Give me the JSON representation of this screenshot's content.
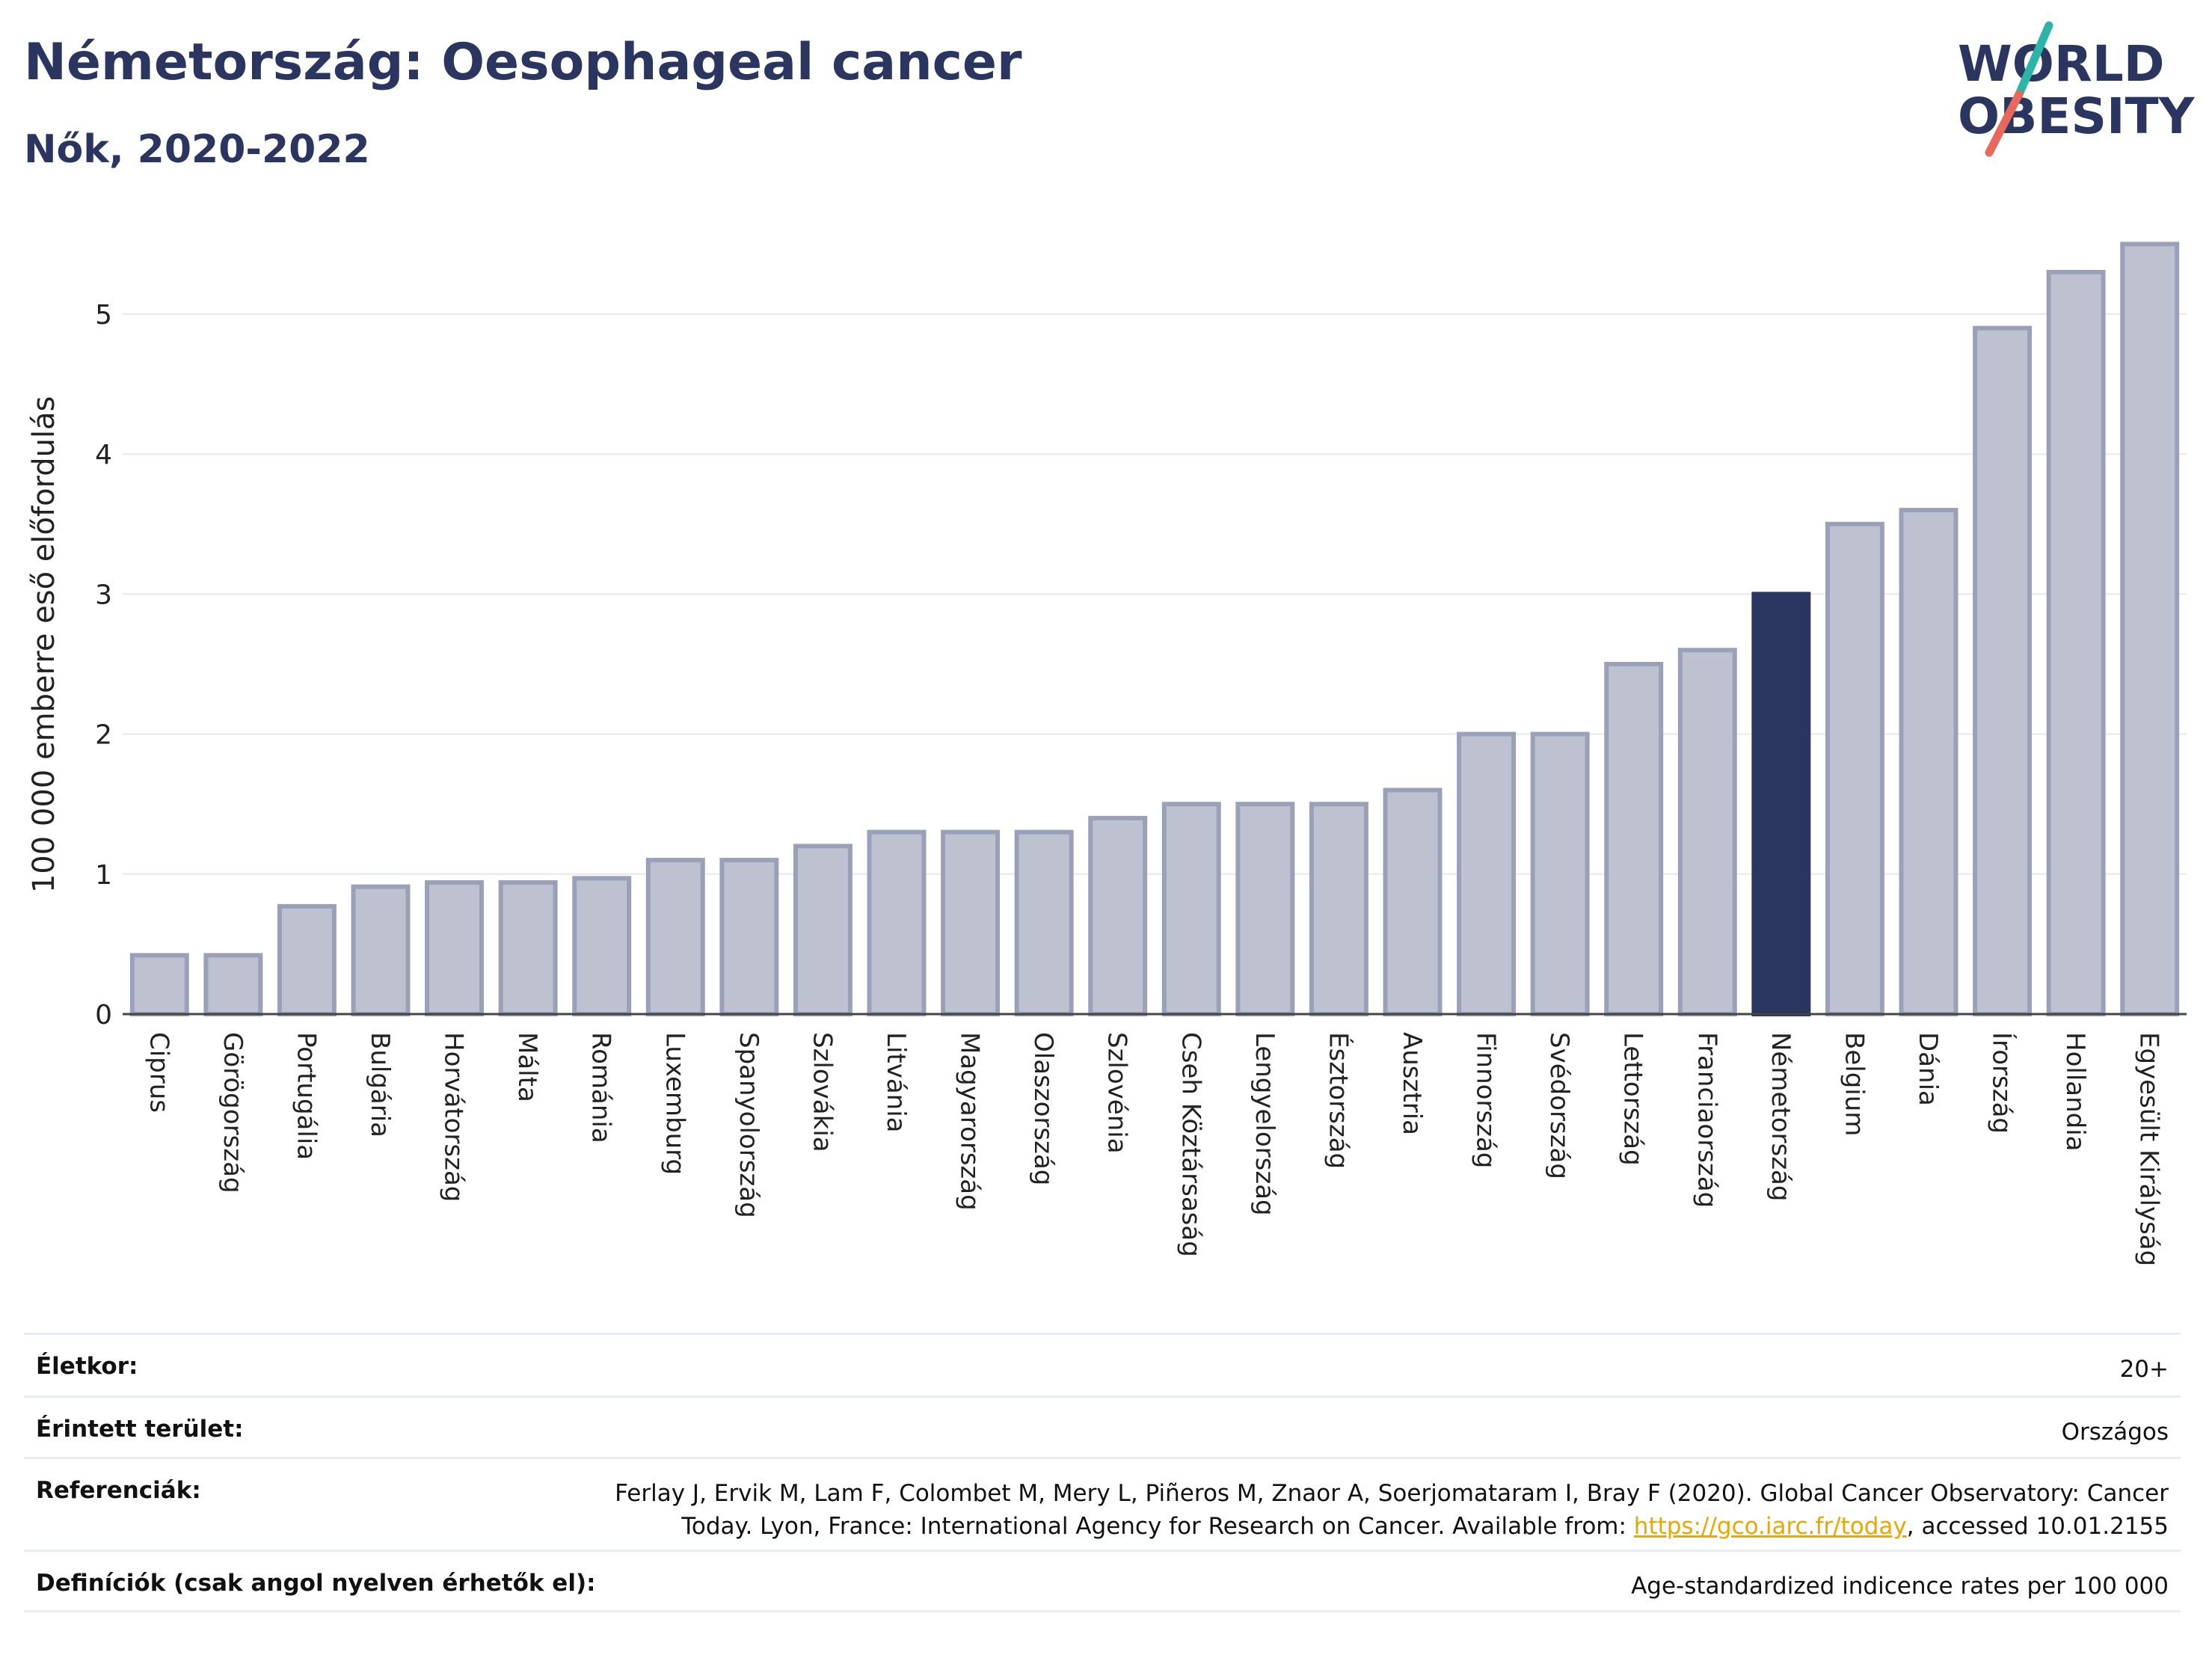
{
  "header": {
    "title": "Németország: Oesophageal cancer",
    "subtitle": "Nők, 2020-2022"
  },
  "logo": {
    "line1": "WORLD",
    "line2": "OBESITY",
    "accent_teal": "#2bb5a8",
    "accent_red": "#e8685c"
  },
  "colors": {
    "bar_default": "#bec2d0",
    "bar_border": "#9aa0b8",
    "bar_highlight": "#2a3560",
    "grid": "#e6e8ee"
  },
  "chart_data": {
    "type": "bar",
    "title": "",
    "xlabel": "",
    "ylabel": "100 000 emberre eső előfordulás",
    "ylim": [
      0,
      5.6
    ],
    "yticks": [
      0,
      1,
      2,
      3,
      4,
      5
    ],
    "grid": true,
    "highlight": "Németország",
    "categories": [
      "Ciprus",
      "Görögország",
      "Portugália",
      "Bulgária",
      "Horvátország",
      "Málta",
      "Románia",
      "Luxemburg",
      "Spanyolország",
      "Szlovákia",
      "Litvánia",
      "Magyarország",
      "Olaszország",
      "Szlovénia",
      "Cseh Köztársaság",
      "Lengyelország",
      "Észtország",
      "Ausztria",
      "Finnország",
      "Svédország",
      "Lettország",
      "Franciaország",
      "Németország",
      "Belgium",
      "Dánia",
      "Írország",
      "Hollandia",
      "Egyesült Királyság"
    ],
    "values": [
      0.42,
      0.42,
      0.77,
      0.91,
      0.94,
      0.94,
      0.97,
      1.1,
      1.1,
      1.2,
      1.3,
      1.3,
      1.3,
      1.4,
      1.5,
      1.5,
      1.5,
      1.6,
      2.0,
      2.0,
      2.5,
      2.6,
      3.0,
      3.5,
      3.6,
      4.9,
      5.3,
      5.5
    ]
  },
  "info": {
    "age_label": "Életkor:",
    "age_value": "20+",
    "area_label": "Érintett terület:",
    "area_value": "Országos",
    "ref_label": "Referenciák:",
    "ref_line1": "Ferlay J, Ervik M, Lam F, Colombet M, Mery L, Piñeros M, Znaor A, Soerjomataram I, Bray F (2020). Global Cancer Observatory: Cancer",
    "ref_line2_pre": "Today. Lyon, France: International Agency for Research on Cancer. Available from: ",
    "ref_link": "https://gco.iarc.fr/today",
    "ref_line2_post": ", accessed 10.01.2155",
    "def_label": "Definíciók (csak angol nyelven érhetők el):",
    "def_value": "Age-standardized indicence rates per 100 000"
  }
}
